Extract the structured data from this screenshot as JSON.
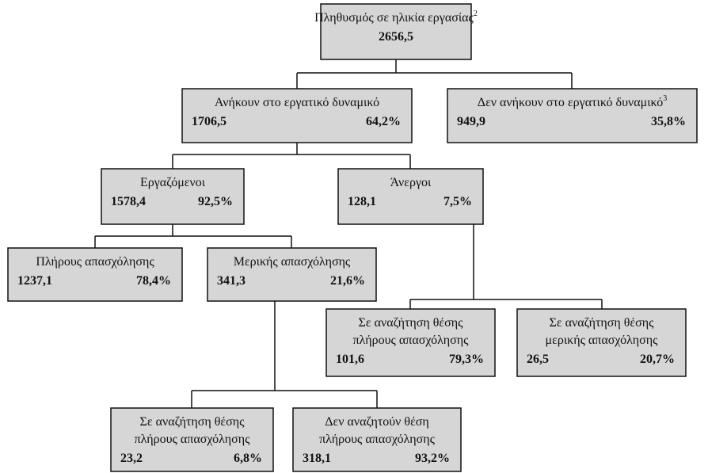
{
  "nodes": [
    {
      "label": [
        "Πληθυσμός σε ηλικία εργασίας"
      ],
      "sup": "2",
      "value": "2656,5"
    },
    {
      "label": [
        "Ανήκουν στο εργατικό δυναμικό"
      ],
      "value": "1706,5",
      "percent": "64,2%"
    },
    {
      "label": [
        "Δεν ανήκουν στο εργατικό δυναμικό"
      ],
      "sup": "3",
      "value": "949,9",
      "percent": "35,8%"
    },
    {
      "label": [
        "Εργαζόμενοι"
      ],
      "value": "1578,4",
      "percent": "92,5%"
    },
    {
      "label": [
        "Άνεργοι"
      ],
      "value": "128,1",
      "percent": "7,5%"
    },
    {
      "label": [
        "Πλήρους απασχόλησης"
      ],
      "value": "1237,1",
      "percent": "78,4%"
    },
    {
      "label": [
        "Μερικής απασχόλησης"
      ],
      "value": "341,3",
      "percent": "21,6%"
    },
    {
      "label": [
        "Σε αναζήτηση θέσης",
        "πλήρους απασχόλησης"
      ],
      "value": "101,6",
      "percent": "79,3%"
    },
    {
      "label": [
        "Σε αναζήτηση θέσης",
        "μερικής απασχόλησης"
      ],
      "value": "26,5",
      "percent": "20,7%"
    },
    {
      "label": [
        "Σε αναζήτηση θέσης",
        "πλήρους απασχόλησης"
      ],
      "value": "23,2",
      "percent": "6,8%"
    },
    {
      "label": [
        "Δεν αναζητούν θέση",
        "πλήρους απασχόλησης"
      ],
      "value": "318,1",
      "percent": "93,2%"
    }
  ]
}
